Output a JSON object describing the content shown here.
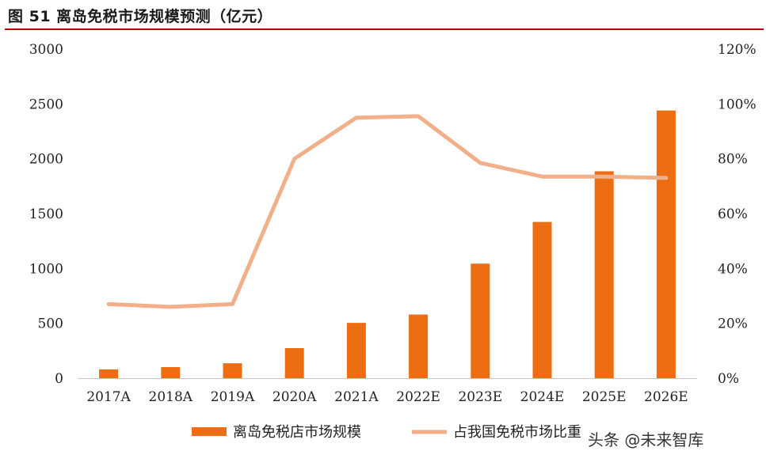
{
  "figure": {
    "title": "图 51 离岛免税市场规模预测（亿元）"
  },
  "watermark": "头条 @未来智库",
  "colors": {
    "bar": "#ED6D12",
    "line": "#F2B08A",
    "title_rule": "#C00000"
  },
  "chart_data": {
    "type": "bar",
    "title": "离岛免税市场规模预测（亿元）",
    "categories": [
      "2017A",
      "2018A",
      "2019A",
      "2020A",
      "2021A",
      "2022E",
      "2023E",
      "2024E",
      "2025E",
      "2026E"
    ],
    "series": [
      {
        "name": "离岛免税店市场规模",
        "type": "bar",
        "axis": "left",
        "values": [
          80,
          101,
          136,
          274,
          504,
          580,
          1044,
          1424,
          1886,
          2440
        ]
      },
      {
        "name": "占我国免税市场比重",
        "type": "line",
        "axis": "right",
        "values": [
          27,
          26,
          27,
          80,
          95,
          95.5,
          78.5,
          73.5,
          73.5,
          73
        ]
      }
    ],
    "y_left": {
      "range": [
        0,
        3000
      ],
      "ticks": [
        0,
        500,
        1000,
        1500,
        2000,
        2500,
        3000
      ],
      "tick_labels": [
        "0",
        "500",
        "1000",
        "1500",
        "2000",
        "2500",
        "3000"
      ]
    },
    "y_right": {
      "range": [
        0,
        120
      ],
      "ticks": [
        0,
        20,
        40,
        60,
        80,
        100,
        120
      ],
      "tick_labels": [
        "0%",
        "20%",
        "40%",
        "60%",
        "80%",
        "100%",
        "120%"
      ]
    },
    "grid": false,
    "legend": "bottom"
  }
}
